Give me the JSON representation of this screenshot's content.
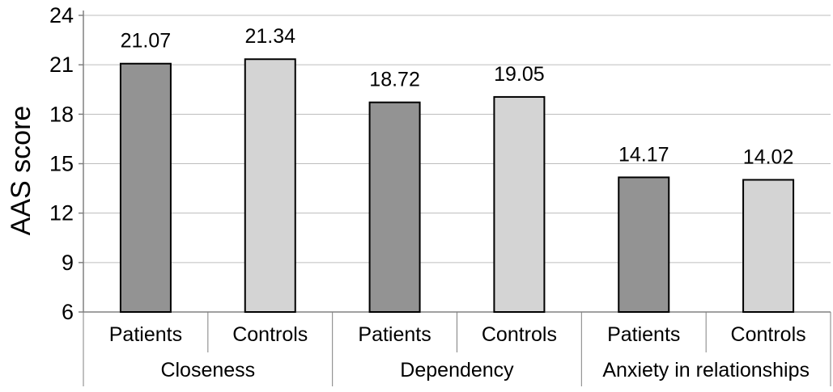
{
  "chart_data": {
    "type": "bar",
    "title": "",
    "ylabel": "AAS score",
    "xlabel": "",
    "ylim": [
      6,
      24
    ],
    "yticks": [
      6,
      9,
      12,
      15,
      18,
      21,
      24
    ],
    "grid": true,
    "legend": "none",
    "groups": [
      "Closeness",
      "Dependency",
      "Anxiety in relationships"
    ],
    "subcategories": [
      "Patients",
      "Controls"
    ],
    "bars": [
      {
        "group": "Closeness",
        "category": "Patients",
        "value": 21.07,
        "label": "21.07",
        "color": "#939393"
      },
      {
        "group": "Closeness",
        "category": "Controls",
        "value": 21.34,
        "label": "21.34",
        "color": "#d4d4d4"
      },
      {
        "group": "Dependency",
        "category": "Patients",
        "value": 18.72,
        "label": "18.72",
        "color": "#939393"
      },
      {
        "group": "Dependency",
        "category": "Controls",
        "value": 19.05,
        "label": "19.05",
        "color": "#d4d4d4"
      },
      {
        "group": "Anxiety in relationships",
        "category": "Patients",
        "value": 14.17,
        "label": "14.17",
        "color": "#939393"
      },
      {
        "group": "Anxiety in relationships",
        "category": "Controls",
        "value": 14.02,
        "label": "14.02",
        "color": "#d4d4d4"
      }
    ]
  }
}
